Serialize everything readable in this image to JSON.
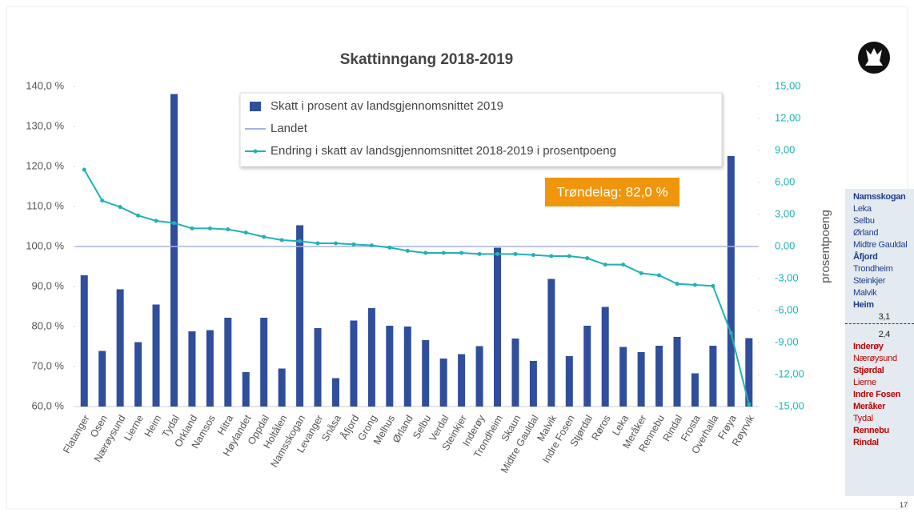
{
  "chart_data": {
    "type": "bar",
    "title": "Skattinngang 2018-2019",
    "categories": [
      "Flatanger",
      "Osen",
      "Nærøysund",
      "Lierne",
      "Heim",
      "Tydal",
      "Orkland",
      "Namsos",
      "Hitra",
      "Høylandet",
      "Oppdal",
      "Holtålen",
      "Namsskogan",
      "Levanger",
      "Snåsa",
      "Åfjord",
      "Grong",
      "Melhus",
      "Ørland",
      "Selbu",
      "Verdal",
      "Steinkjer",
      "Inderøy",
      "Trondheim",
      "Skaun",
      "Midtre Gauldal",
      "Malvik",
      "Indre Fosen",
      "Stjørdal",
      "Røros",
      "Leka",
      "Meråker",
      "Rennebu",
      "Rindal",
      "Frosta",
      "Overhalla",
      "Frøya",
      "Røyrvik"
    ],
    "series": [
      {
        "name": "Skatt i prosent av landsgjennomsnittet 2019",
        "type": "bar",
        "color": "#2f4e9b",
        "values": [
          92.8,
          73.9,
          89.3,
          76.1,
          85.5,
          138.1,
          78.8,
          79.1,
          82.2,
          68.6,
          82.2,
          69.5,
          105.3,
          79.6,
          67.1,
          81.5,
          84.6,
          80.2,
          80.0,
          76.6,
          72.0,
          73.1,
          75.1,
          99.7,
          77.0,
          71.4,
          91.9,
          72.6,
          80.2,
          84.9,
          74.9,
          73.6,
          75.2,
          77.4,
          68.3,
          75.2,
          122.6,
          77.1
        ]
      },
      {
        "name": "Landet",
        "type": "hline",
        "color": "#a8b4e0",
        "value": 100
      },
      {
        "name": "Endring i skatt av landsgjennomsnittet 2018-2019 i prosentpoeng",
        "type": "line",
        "axis": "y2",
        "color": "#1fb2b5",
        "values": [
          7.2,
          4.3,
          3.7,
          2.9,
          2.4,
          2.2,
          1.7,
          1.7,
          1.6,
          1.3,
          0.9,
          0.6,
          0.5,
          0.3,
          0.3,
          0.2,
          0.1,
          -0.1,
          -0.4,
          -0.6,
          -0.6,
          -0.6,
          -0.7,
          -0.7,
          -0.7,
          -0.8,
          -0.9,
          -0.9,
          -1.1,
          -1.7,
          -1.7,
          -2.5,
          -2.7,
          -3.5,
          -3.6,
          -3.7,
          -8.1,
          -14.8
        ]
      }
    ],
    "ylim": [
      60,
      140
    ],
    "yticks": [
      {
        "value": 60,
        "label": "60,0 %"
      },
      {
        "value": 70,
        "label": "70,0 %"
      },
      {
        "value": 80,
        "label": "80,0 %"
      },
      {
        "value": 90,
        "label": "90,0 %"
      },
      {
        "value": 100,
        "label": "100,0 %"
      },
      {
        "value": 110,
        "label": "110,0 %"
      },
      {
        "value": 120,
        "label": "120,0 %"
      },
      {
        "value": 130,
        "label": "130,0 %"
      },
      {
        "value": 140,
        "label": "140,0 %"
      }
    ],
    "y2lim": [
      -15,
      15
    ],
    "y2ticks": [
      {
        "value": -15,
        "label": "-15,00"
      },
      {
        "value": -12,
        "label": "-12,00"
      },
      {
        "value": -9,
        "label": "-9,00"
      },
      {
        "value": -6,
        "label": "-6,00"
      },
      {
        "value": -3,
        "label": "-3,00"
      },
      {
        "value": 0,
        "label": "0,00"
      },
      {
        "value": 3,
        "label": "3,00"
      },
      {
        "value": 6,
        "label": "6,00"
      },
      {
        "value": 9,
        "label": "9,00"
      },
      {
        "value": 12,
        "label": "12,00"
      },
      {
        "value": 15,
        "label": "15,00"
      }
    ],
    "y2label": "prosentpoeng",
    "annotation": "Trøndelag: 82,0 %",
    "legend": "top"
  },
  "side_panel": {
    "top_items": [
      {
        "text": "Namsskogan",
        "bold": true
      },
      {
        "text": "Leka",
        "bold": false
      },
      {
        "text": "Selbu",
        "bold": false
      },
      {
        "text": "Ørland",
        "bold": false
      },
      {
        "text": "Midtre Gauldal",
        "bold": false
      },
      {
        "text": "Åfjord",
        "bold": true
      },
      {
        "text": "Trondheim",
        "bold": false
      },
      {
        "text": "Steinkjer",
        "bold": false
      },
      {
        "text": "Malvik",
        "bold": false
      },
      {
        "text": "Heim",
        "bold": true
      }
    ],
    "top_value": "3,1",
    "bottom_value": "2,4",
    "bottom_items": [
      {
        "text": "Inderøy",
        "bold": true
      },
      {
        "text": "Nærøysund",
        "bold": false
      },
      {
        "text": "Stjørdal",
        "bold": true
      },
      {
        "text": "Lierne",
        "bold": false
      },
      {
        "text": "Indre Fosen",
        "bold": true
      },
      {
        "text": "Meråker",
        "bold": true
      },
      {
        "text": "Tydal",
        "bold": false
      },
      {
        "text": "Rennebu",
        "bold": true
      },
      {
        "text": "Rindal",
        "bold": true
      }
    ]
  },
  "page_number": "17"
}
